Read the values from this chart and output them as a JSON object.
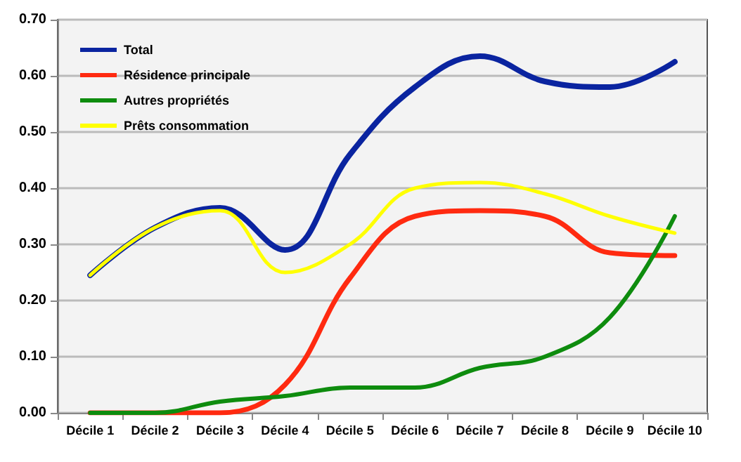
{
  "chart_data": {
    "type": "line",
    "categories": [
      "Décile 1",
      "Décile 2",
      "Décile 3",
      "Décile 4",
      "Décile 5",
      "Décile 6",
      "Décile 7",
      "Décile 8",
      "Décile 9",
      "Décile 10"
    ],
    "series": [
      {
        "name": "Total",
        "color": "#0a24a0",
        "values": [
          0.245,
          0.33,
          0.365,
          0.29,
          0.46,
          0.58,
          0.635,
          0.59,
          0.58,
          0.625
        ]
      },
      {
        "name": "Résidence principale",
        "color": "#ff2a10",
        "values": [
          0,
          0,
          0,
          0.05,
          0.24,
          0.35,
          0.36,
          0.35,
          0.285,
          0.28
        ]
      },
      {
        "name": "Autres propriétés",
        "color": "#0e8c0e",
        "values": [
          0,
          0,
          0.02,
          0.03,
          0.045,
          0.045,
          0.08,
          0.1,
          0.17,
          0.35
        ]
      },
      {
        "name": "Prêts consommation",
        "color": "#ffff00",
        "values": [
          0.245,
          0.33,
          0.36,
          0.25,
          0.3,
          0.4,
          0.41,
          0.39,
          0.35,
          0.32
        ]
      }
    ],
    "ylim": [
      0,
      0.7
    ],
    "yticks": [
      {
        "value": 0,
        "label": "0.00"
      },
      {
        "value": 0.1,
        "label": "0.10"
      },
      {
        "value": 0.2,
        "label": "0.20"
      },
      {
        "value": 0.3,
        "label": "0.30"
      },
      {
        "value": 0.4,
        "label": "0.40"
      },
      {
        "value": 0.5,
        "label": "0.50"
      },
      {
        "value": 0.6,
        "label": "0.60"
      },
      {
        "value": 0.7,
        "label": "0.70"
      }
    ],
    "grid": "y",
    "legend": "top left",
    "marker": "none",
    "line_style": "solid"
  }
}
